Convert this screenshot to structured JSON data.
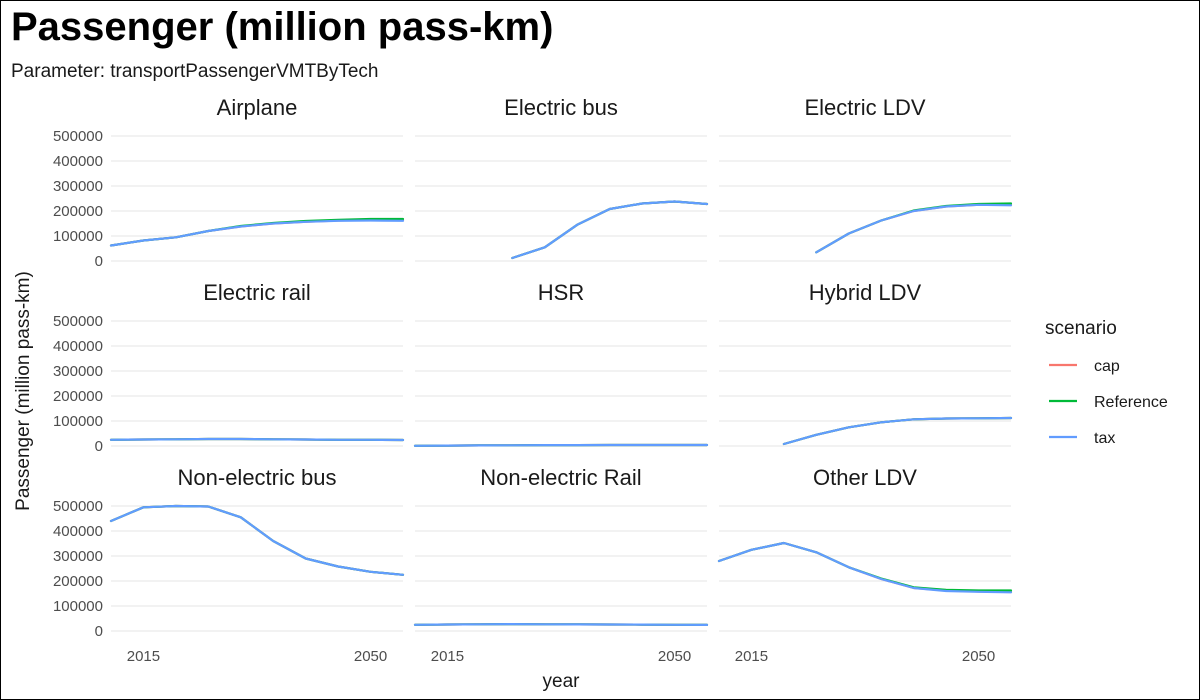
{
  "title": "Passenger (million pass-km)",
  "subtitle": "Parameter: transportPassengerVMTByTech",
  "chart_data": {
    "type": "line",
    "facet": true,
    "xlabel": "year",
    "ylabel": "Passenger (million pass-km)",
    "xlim": [
      2010,
      2055
    ],
    "ylim": [
      0,
      500000
    ],
    "x_ticks": [
      2015,
      2050
    ],
    "y_ticks": [
      0,
      100000,
      200000,
      300000,
      400000,
      500000
    ],
    "grid": true,
    "legend": {
      "title": "scenario",
      "position": "right",
      "entries": [
        {
          "name": "cap",
          "color": "#F8766D"
        },
        {
          "name": "Reference",
          "color": "#00BA38"
        },
        {
          "name": "tax",
          "color": "#619CFF"
        }
      ]
    },
    "panels": [
      {
        "name": "Airplane",
        "series": [
          {
            "name": "cap",
            "x": [
              2010,
              2015,
              2020,
              2025,
              2030,
              2035,
              2040,
              2045,
              2050,
              2055
            ],
            "y": [
              62000,
              82000,
              95000,
              120000,
              138000,
              150000,
              157000,
              162000,
              164000,
              163000
            ]
          },
          {
            "name": "Reference",
            "x": [
              2010,
              2015,
              2020,
              2025,
              2030,
              2035,
              2040,
              2045,
              2050,
              2055
            ],
            "y": [
              62000,
              82000,
              95000,
              120000,
              140000,
              152000,
              160000,
              165000,
              168000,
              168000
            ]
          },
          {
            "name": "tax",
            "x": [
              2010,
              2015,
              2020,
              2025,
              2030,
              2035,
              2040,
              2045,
              2050,
              2055
            ],
            "y": [
              62000,
              82000,
              95000,
              120000,
              138000,
              150000,
              157000,
              161000,
              162000,
              161000
            ]
          }
        ]
      },
      {
        "name": "Electric bus",
        "series": [
          {
            "name": "cap",
            "x": [
              2025,
              2030,
              2035,
              2040,
              2045,
              2050,
              2055
            ],
            "y": [
              12000,
              55000,
              145000,
              208000,
              230000,
              238000,
              228000
            ]
          },
          {
            "name": "Reference",
            "x": [
              2025,
              2030,
              2035,
              2040,
              2045,
              2050,
              2055
            ],
            "y": [
              12000,
              55000,
              145000,
              208000,
              230000,
              238000,
              228000
            ]
          },
          {
            "name": "tax",
            "x": [
              2025,
              2030,
              2035,
              2040,
              2045,
              2050,
              2055
            ],
            "y": [
              12000,
              55000,
              145000,
              208000,
              230000,
              238000,
              228000
            ]
          }
        ]
      },
      {
        "name": "Electric LDV",
        "series": [
          {
            "name": "cap",
            "x": [
              2025,
              2030,
              2035,
              2040,
              2045,
              2050,
              2055
            ],
            "y": [
              35000,
              110000,
              162000,
              200000,
              218000,
              225000,
              225000
            ]
          },
          {
            "name": "Reference",
            "x": [
              2025,
              2030,
              2035,
              2040,
              2045,
              2050,
              2055
            ],
            "y": [
              35000,
              110000,
              162000,
              202000,
              220000,
              228000,
              230000
            ]
          },
          {
            "name": "tax",
            "x": [
              2025,
              2030,
              2035,
              2040,
              2045,
              2050,
              2055
            ],
            "y": [
              35000,
              110000,
              162000,
              200000,
              218000,
              225000,
              223000
            ]
          }
        ]
      },
      {
        "name": "Electric rail",
        "series": [
          {
            "name": "cap",
            "x": [
              2010,
              2015,
              2020,
              2025,
              2030,
              2035,
              2040,
              2045,
              2050,
              2055
            ],
            "y": [
              25000,
              26000,
              27000,
              28000,
              28000,
              27000,
              26000,
              25000,
              25000,
              24000
            ]
          },
          {
            "name": "Reference",
            "x": [
              2010,
              2015,
              2020,
              2025,
              2030,
              2035,
              2040,
              2045,
              2050,
              2055
            ],
            "y": [
              25000,
              26000,
              27000,
              28000,
              28000,
              27000,
              26000,
              25000,
              25000,
              24000
            ]
          },
          {
            "name": "tax",
            "x": [
              2010,
              2015,
              2020,
              2025,
              2030,
              2035,
              2040,
              2045,
              2050,
              2055
            ],
            "y": [
              25000,
              26000,
              27000,
              28000,
              28000,
              27000,
              26000,
              25000,
              25000,
              24000
            ]
          }
        ]
      },
      {
        "name": "HSR",
        "series": [
          {
            "name": "cap",
            "x": [
              2010,
              2015,
              2020,
              2025,
              2030,
              2035,
              2040,
              2045,
              2050,
              2055
            ],
            "y": [
              1000,
              1500,
              2500,
              3000,
              3500,
              3500,
              4000,
              4000,
              4000,
              4000
            ]
          },
          {
            "name": "Reference",
            "x": [
              2010,
              2015,
              2020,
              2025,
              2030,
              2035,
              2040,
              2045,
              2050,
              2055
            ],
            "y": [
              1000,
              1500,
              2500,
              3000,
              3500,
              3500,
              4000,
              4000,
              4000,
              4000
            ]
          },
          {
            "name": "tax",
            "x": [
              2010,
              2015,
              2020,
              2025,
              2030,
              2035,
              2040,
              2045,
              2050,
              2055
            ],
            "y": [
              1000,
              1500,
              2500,
              3000,
              3500,
              3500,
              4000,
              4000,
              4000,
              4000
            ]
          }
        ]
      },
      {
        "name": "Hybrid LDV",
        "series": [
          {
            "name": "cap",
            "x": [
              2020,
              2025,
              2030,
              2035,
              2040,
              2045,
              2050,
              2055
            ],
            "y": [
              8000,
              45000,
              75000,
              95000,
              107000,
              110000,
              111000,
              112000
            ]
          },
          {
            "name": "Reference",
            "x": [
              2020,
              2025,
              2030,
              2035,
              2040,
              2045,
              2050,
              2055
            ],
            "y": [
              8000,
              45000,
              75000,
              95000,
              107000,
              110000,
              111000,
              112000
            ]
          },
          {
            "name": "tax",
            "x": [
              2020,
              2025,
              2030,
              2035,
              2040,
              2045,
              2050,
              2055
            ],
            "y": [
              8000,
              45000,
              75000,
              95000,
              107000,
              110000,
              111000,
              112000
            ]
          }
        ]
      },
      {
        "name": "Non-electric bus",
        "series": [
          {
            "name": "cap",
            "x": [
              2010,
              2015,
              2020,
              2025,
              2030,
              2035,
              2040,
              2045,
              2050,
              2055
            ],
            "y": [
              440000,
              495000,
              500000,
              498000,
              455000,
              360000,
              290000,
              258000,
              237000,
              225000
            ]
          },
          {
            "name": "Reference",
            "x": [
              2010,
              2015,
              2020,
              2025,
              2030,
              2035,
              2040,
              2045,
              2050,
              2055
            ],
            "y": [
              440000,
              495000,
              500000,
              498000,
              455000,
              360000,
              290000,
              258000,
              237000,
              225000
            ]
          },
          {
            "name": "tax",
            "x": [
              2010,
              2015,
              2020,
              2025,
              2030,
              2035,
              2040,
              2045,
              2050,
              2055
            ],
            "y": [
              440000,
              495000,
              500000,
              498000,
              455000,
              360000,
              290000,
              258000,
              237000,
              225000
            ]
          }
        ]
      },
      {
        "name": "Non-electric Rail",
        "series": [
          {
            "name": "cap",
            "x": [
              2010,
              2015,
              2020,
              2025,
              2030,
              2035,
              2040,
              2045,
              2050,
              2055
            ],
            "y": [
              25000,
              26000,
              27000,
              27500,
              27000,
              26500,
              26000,
              25500,
              25000,
              24500
            ]
          },
          {
            "name": "Reference",
            "x": [
              2010,
              2015,
              2020,
              2025,
              2030,
              2035,
              2040,
              2045,
              2050,
              2055
            ],
            "y": [
              25000,
              26000,
              27000,
              27500,
              27000,
              26500,
              26000,
              25500,
              25000,
              24500
            ]
          },
          {
            "name": "tax",
            "x": [
              2010,
              2015,
              2020,
              2025,
              2030,
              2035,
              2040,
              2045,
              2050,
              2055
            ],
            "y": [
              25000,
              26000,
              27000,
              27500,
              27000,
              26500,
              26000,
              25500,
              25000,
              24500
            ]
          }
        ]
      },
      {
        "name": "Other LDV",
        "series": [
          {
            "name": "cap",
            "x": [
              2010,
              2015,
              2020,
              2025,
              2030,
              2035,
              2040,
              2045,
              2050,
              2055
            ],
            "y": [
              280000,
              325000,
              352000,
              315000,
              255000,
              208000,
              172000,
              162000,
              158000,
              156000
            ]
          },
          {
            "name": "Reference",
            "x": [
              2010,
              2015,
              2020,
              2025,
              2030,
              2035,
              2040,
              2045,
              2050,
              2055
            ],
            "y": [
              280000,
              325000,
              352000,
              315000,
              255000,
              210000,
              175000,
              165000,
              162000,
              162000
            ]
          },
          {
            "name": "tax",
            "x": [
              2010,
              2015,
              2020,
              2025,
              2030,
              2035,
              2040,
              2045,
              2050,
              2055
            ],
            "y": [
              280000,
              325000,
              352000,
              315000,
              255000,
              208000,
              172000,
              160000,
              157000,
              155000
            ]
          }
        ]
      }
    ]
  }
}
